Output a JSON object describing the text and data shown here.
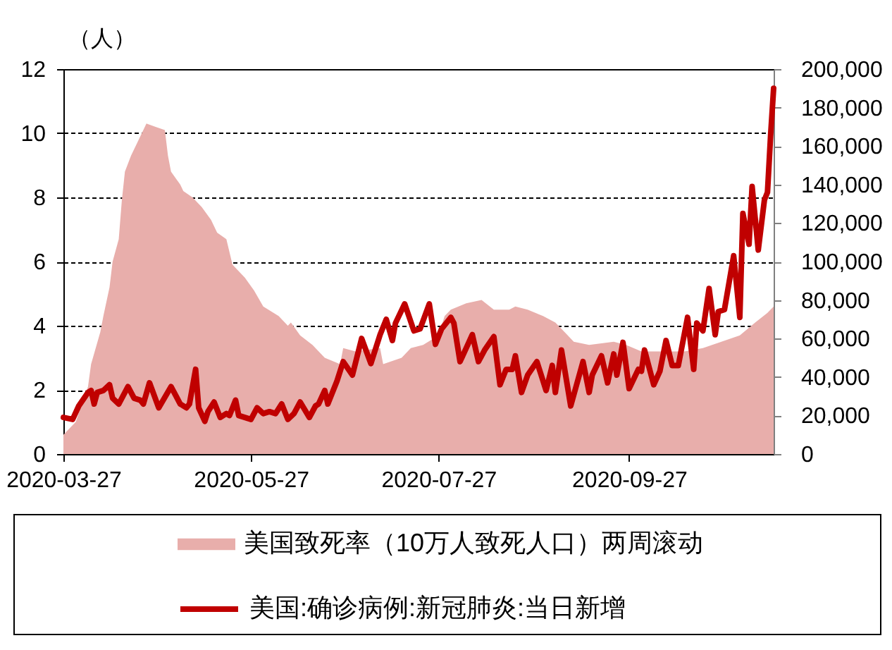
{
  "chart_data": {
    "type": "line",
    "ylabel": "（人）",
    "xlim": [
      "2020-03-27",
      "2020-11-13"
    ],
    "xticks": [
      "2020-03-27",
      "2020-05-27",
      "2020-07-27",
      "2020-09-27"
    ],
    "ylim": [
      0,
      12
    ],
    "yticks": [
      0,
      2,
      4,
      6,
      8,
      10,
      12
    ],
    "y2lim": [
      0,
      200000
    ],
    "y2ticks": [
      0,
      {
        "value": 20000,
        "label": "20,000"
      },
      {
        "value": 40000,
        "label": "40,000"
      },
      {
        "value": 60000,
        "label": "60,000"
      },
      {
        "value": 80000,
        "label": "80,000"
      },
      {
        "value": 100000,
        "label": "100,000"
      },
      {
        "value": 120000,
        "label": "120,000"
      },
      {
        "value": 140000,
        "label": "140,000"
      },
      {
        "value": 160000,
        "label": "160,000"
      },
      {
        "value": 180000,
        "label": "180,000"
      },
      {
        "value": 200000,
        "label": "200,000"
      }
    ],
    "grid": "y",
    "legend": "bottom",
    "series": [
      {
        "name": "美国致死率（10万人致死人口）两周滚动",
        "type": "area",
        "color": "#e8aeab",
        "x": [
          "2020-03-27",
          "2020-03-31",
          "2020-04-04",
          "2020-04-05",
          "2020-04-08",
          "2020-04-09",
          "2020-04-11",
          "2020-04-12",
          "2020-04-14",
          "2020-04-15",
          "2020-04-16",
          "2020-04-18",
          "2020-04-21",
          "2020-04-23",
          "2020-04-26",
          "2020-04-29",
          "2020-04-30",
          "2020-05-01",
          "2020-05-04",
          "2020-05-05",
          "2020-05-08",
          "2020-05-11",
          "2020-05-14",
          "2020-05-16",
          "2020-05-19",
          "2020-05-21",
          "2020-05-25",
          "2020-05-28",
          "2020-05-31",
          "2020-06-05",
          "2020-06-08",
          "2020-06-09",
          "2020-06-12",
          "2020-06-16",
          "2020-06-20",
          "2020-06-25",
          "2020-06-26",
          "2020-06-30",
          "2020-07-08",
          "2020-07-09",
          "2020-07-15",
          "2020-07-18",
          "2020-07-22",
          "2020-07-27",
          "2020-07-29",
          "2020-07-31",
          "2020-08-05",
          "2020-08-10",
          "2020-08-14",
          "2020-08-19",
          "2020-08-21",
          "2020-08-25",
          "2020-08-30",
          "2020-09-03",
          "2020-09-06",
          "2020-09-09",
          "2020-09-14",
          "2020-09-22",
          "2020-09-26",
          "2020-10-01",
          "2020-10-07",
          "2020-10-15",
          "2020-10-21",
          "2020-10-27",
          "2020-11-02",
          "2020-11-07",
          "2020-11-11",
          "2020-11-13"
        ],
        "values": [
          0.6,
          1.0,
          2.1,
          2.8,
          3.8,
          4.3,
          5.2,
          6.0,
          6.7,
          7.9,
          8.8,
          9.3,
          9.9,
          10.3,
          10.2,
          10.1,
          9.3,
          8.8,
          8.4,
          8.2,
          8.0,
          7.7,
          7.3,
          6.9,
          6.7,
          5.9,
          5.5,
          5.1,
          4.6,
          4.3,
          4.0,
          4.1,
          3.7,
          3.4,
          3.0,
          2.8,
          3.3,
          3.2,
          3.3,
          2.8,
          3.0,
          3.3,
          3.4,
          3.7,
          4.3,
          4.5,
          4.7,
          4.8,
          4.5,
          4.5,
          4.6,
          4.5,
          4.3,
          4.1,
          3.8,
          3.5,
          3.4,
          3.5,
          3.4,
          3.2,
          3.2,
          3.2,
          3.3,
          3.5,
          3.7,
          4.1,
          4.4,
          4.6
        ]
      },
      {
        "name": "美国:确诊病例:新冠肺炎:当日新增",
        "axis": "y2",
        "color": "#c00000",
        "x": [
          "2020-03-27",
          "2020-03-30",
          "2020-04-01",
          "2020-04-04",
          "2020-04-05",
          "2020-04-06",
          "2020-04-07",
          "2020-04-09",
          "2020-04-11",
          "2020-04-12",
          "2020-04-14",
          "2020-04-17",
          "2020-04-19",
          "2020-04-21",
          "2020-04-22",
          "2020-04-24",
          "2020-04-27",
          "2020-05-01",
          "2020-05-04",
          "2020-05-06",
          "2020-05-07",
          "2020-05-09",
          "2020-05-10",
          "2020-05-12",
          "2020-05-13",
          "2020-05-15",
          "2020-05-17",
          "2020-05-19",
          "2020-05-20",
          "2020-05-22",
          "2020-05-23",
          "2020-05-27",
          "2020-05-29",
          "2020-05-31",
          "2020-06-02",
          "2020-06-04",
          "2020-06-06",
          "2020-06-08",
          "2020-06-10",
          "2020-06-12",
          "2020-06-15",
          "2020-06-17",
          "2020-06-18",
          "2020-06-20",
          "2020-06-21",
          "2020-06-24",
          "2020-06-26",
          "2020-06-29",
          "2020-07-02",
          "2020-07-05",
          "2020-07-08",
          "2020-07-10",
          "2020-07-12",
          "2020-07-13",
          "2020-07-16",
          "2020-07-19",
          "2020-07-21",
          "2020-07-24",
          "2020-07-26",
          "2020-07-28",
          "2020-07-31",
          "2020-08-01",
          "2020-08-03",
          "2020-08-05",
          "2020-08-07",
          "2020-08-09",
          "2020-08-11",
          "2020-08-14",
          "2020-08-16",
          "2020-08-18",
          "2020-08-20",
          "2020-08-21",
          "2020-08-23",
          "2020-08-25",
          "2020-08-28",
          "2020-08-31",
          "2020-09-02",
          "2020-09-03",
          "2020-09-05",
          "2020-09-08",
          "2020-09-12",
          "2020-09-14",
          "2020-09-15",
          "2020-09-18",
          "2020-09-20",
          "2020-09-22",
          "2020-09-23",
          "2020-09-25",
          "2020-09-27",
          "2020-09-30",
          "2020-10-01",
          "2020-10-02",
          "2020-10-05",
          "2020-10-07",
          "2020-10-09",
          "2020-10-11",
          "2020-10-13",
          "2020-10-16",
          "2020-10-18",
          "2020-10-19",
          "2020-10-21",
          "2020-10-23",
          "2020-10-25",
          "2020-10-26",
          "2020-10-28",
          "2020-10-31",
          "2020-11-02",
          "2020-11-03",
          "2020-11-05",
          "2020-11-06",
          "2020-11-08",
          "2020-11-10",
          "2020-11-11",
          "2020-11-12",
          "2020-11-13"
        ],
        "values": [
          19000,
          18000,
          25000,
          32000,
          33000,
          26000,
          32000,
          33000,
          36000,
          29000,
          26000,
          35000,
          29000,
          28000,
          26000,
          37000,
          24000,
          35000,
          26000,
          24000,
          26000,
          44000,
          24000,
          17000,
          22000,
          27000,
          19000,
          21000,
          20000,
          28000,
          20000,
          18000,
          24000,
          21000,
          22000,
          21000,
          26000,
          18000,
          21000,
          27000,
          19000,
          25000,
          26000,
          33000,
          26000,
          38000,
          48000,
          41000,
          60000,
          47000,
          62000,
          70000,
          59000,
          68000,
          78000,
          64000,
          65000,
          78000,
          57000,
          65000,
          71000,
          68000,
          48000,
          55000,
          62000,
          48000,
          54000,
          61000,
          36000,
          44000,
          44000,
          51000,
          32000,
          41000,
          48000,
          33000,
          46000,
          32000,
          54000,
          25000,
          48000,
          32000,
          41000,
          51000,
          37000,
          52000,
          41000,
          58000,
          34000,
          44000,
          43000,
          54000,
          36000,
          43000,
          59000,
          46000,
          46000,
          71000,
          44000,
          68000,
          64000,
          86000,
          62000,
          74000,
          75000,
          103000,
          71000,
          125000,
          109000,
          139000,
          106000,
          132000,
          136000,
          165000,
          190000
        ]
      }
    ]
  }
}
